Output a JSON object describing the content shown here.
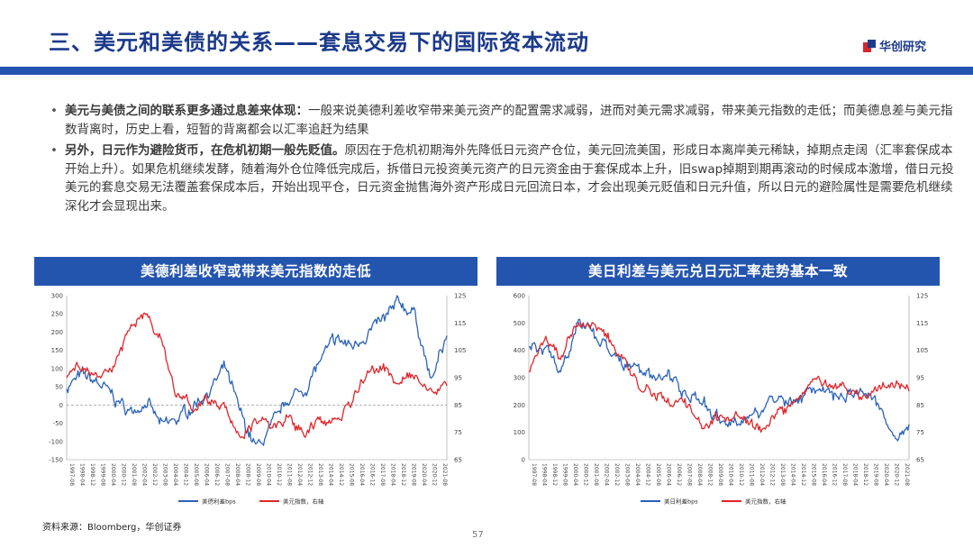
{
  "header": {
    "title": "三、美元和美债的关系——套息交易下的国际资本流动",
    "logo_text": "华创研究"
  },
  "bullets": [
    {
      "bold": "美元与美债之间的联系更多通过息差来体现：",
      "text": "一般来说美德利差收窄带来美元资产的配置需求减弱，进而对美元需求减弱，带来美元指数的走低；而美德息差与美元指数背离时，历史上看，短暂的背离都会以汇率追赶为结果"
    },
    {
      "bold": "另外，日元作为避险货币，在危机初期一般先贬值。",
      "text": "原因在于危机初期海外先降低日元资产仓位，美元回流美国，形成日本离岸美元稀缺，掉期点走阔（汇率套保成本开始上升）。如果危机继续发酵，随着海外仓位降低完成后，拆借日元投资美元资产的日元资金由于套保成本上升，旧swap掉期到期再滚动的时候成本激增，借日元投美元的套息交易无法覆盖套保成本后，开始出现平仓，日元资金抛售海外资产形成日元回流日本，才会出现美元贬值和日元升值，所以日元的避险属性是需要危机继续深化才会显现出来。"
    }
  ],
  "charts": [
    {
      "banner": "美德利差收窄或带来美元指数的走低",
      "legend": [
        "美德利差bps",
        "美元指数，右轴"
      ]
    },
    {
      "banner": "美日利差与美元兑日元汇率走势基本一致",
      "legend": [
        "美日利差bps",
        "美元指数，右轴"
      ]
    }
  ],
  "chart_data": [
    {
      "type": "line",
      "title": "美德利差收窄或带来美元指数的走低",
      "x": [
        "1997",
        "1998",
        "1999",
        "2000",
        "2001",
        "2002",
        "2003",
        "2004",
        "2005",
        "2006",
        "2007",
        "2008",
        "2009",
        "2010",
        "2011",
        "2012",
        "2013",
        "2014",
        "2015",
        "2016",
        "2017",
        "2018",
        "2019",
        "2020",
        "2021"
      ],
      "x_tick_labels": [
        "1997-08",
        "1998-04",
        "1998-12",
        "1999-08",
        "2000-04",
        "2000-12",
        "2001-08",
        "2002-04",
        "2002-12",
        "2003-08",
        "2004-04",
        "2004-12",
        "2005-08",
        "2006-04",
        "2006-12",
        "2007-08",
        "2008-04",
        "2008-12",
        "2009-08",
        "2010-04",
        "2010-12",
        "2011-08",
        "2012-04",
        "2012-12",
        "2013-08",
        "2014-04",
        "2014-12",
        "2015-08",
        "2016-04",
        "2016-12",
        "2017-08",
        "2018-04",
        "2018-12",
        "2019-08",
        "2020-04",
        "2020-12",
        "2021-08"
      ],
      "ylim_left": [
        -150,
        300
      ],
      "yticks_left": [
        -150,
        -100,
        -50,
        0,
        50,
        100,
        150,
        200,
        250,
        300
      ],
      "ylim_right": [
        65,
        125
      ],
      "yticks_right": [
        65,
        75,
        85,
        95,
        105,
        115,
        125
      ],
      "series": [
        {
          "name": "美德利差bps",
          "axis": "left",
          "color": "#2a63b8",
          "values": [
            50,
            80,
            60,
            20,
            -20,
            10,
            -60,
            -40,
            0,
            40,
            100,
            -30,
            -120,
            -60,
            20,
            40,
            120,
            180,
            160,
            200,
            230,
            280,
            250,
            60,
            190
          ]
        },
        {
          "name": "美元指数，右轴",
          "axis": "right",
          "color": "#e0262b",
          "values": [
            96,
            99,
            95,
            100,
            112,
            119,
            108,
            88,
            84,
            86,
            84,
            72,
            79,
            76,
            80,
            74,
            80,
            80,
            85,
            97,
            99,
            93,
            96,
            89,
            92
          ]
        }
      ]
    },
    {
      "type": "line",
      "title": "美日利差与美元兑日元汇率走势基本一致",
      "x": [
        "1997",
        "1998",
        "1999",
        "2000",
        "2001",
        "2002",
        "2003",
        "2004",
        "2005",
        "2006",
        "2007",
        "2008",
        "2009",
        "2010",
        "2011",
        "2012",
        "2013",
        "2014",
        "2015",
        "2016",
        "2017",
        "2018",
        "2019",
        "2020",
        "2021"
      ],
      "x_tick_labels": [
        "1997-08",
        "1998-04",
        "1998-12",
        "1999-08",
        "2000-04",
        "2000-12",
        "2001-08",
        "2002-04",
        "2002-12",
        "2003-08",
        "2004-04",
        "2004-12",
        "2005-08",
        "2006-04",
        "2006-12",
        "2007-08",
        "2008-04",
        "2008-12",
        "2009-08",
        "2010-04",
        "2010-12",
        "2011-08",
        "2012-04",
        "2012-12",
        "2013-08",
        "2014-04",
        "2014-12",
        "2015-08",
        "2016-04",
        "2016-12",
        "2017-08",
        "2018-04",
        "2018-12",
        "2019-08",
        "2020-04",
        "2020-12",
        "2021-08"
      ],
      "ylim_left": [
        0,
        600
      ],
      "yticks_left": [
        0,
        100,
        200,
        300,
        400,
        500,
        600
      ],
      "ylim_right": [
        65,
        125
      ],
      "yticks_right": [
        65,
        75,
        85,
        95,
        105,
        115,
        125
      ],
      "series": [
        {
          "name": "美日利差bps",
          "axis": "left",
          "color": "#2a63b8",
          "values": [
            420,
            400,
            340,
            470,
            480,
            400,
            350,
            320,
            300,
            290,
            250,
            210,
            140,
            140,
            160,
            200,
            220,
            230,
            250,
            230,
            240,
            270,
            200,
            70,
            130
          ]
        },
        {
          "name": "美元指数，右轴",
          "axis": "right",
          "color": "#e0262b",
          "values": [
            98,
            110,
            102,
            114,
            114,
            111,
            101,
            92,
            89,
            87,
            85,
            75,
            80,
            81,
            77,
            76,
            83,
            86,
            96,
            93,
            91,
            88,
            92,
            94,
            90
          ]
        }
      ]
    }
  ],
  "source": "资料来源：Bloomberg，华创证券",
  "page_number": "57"
}
